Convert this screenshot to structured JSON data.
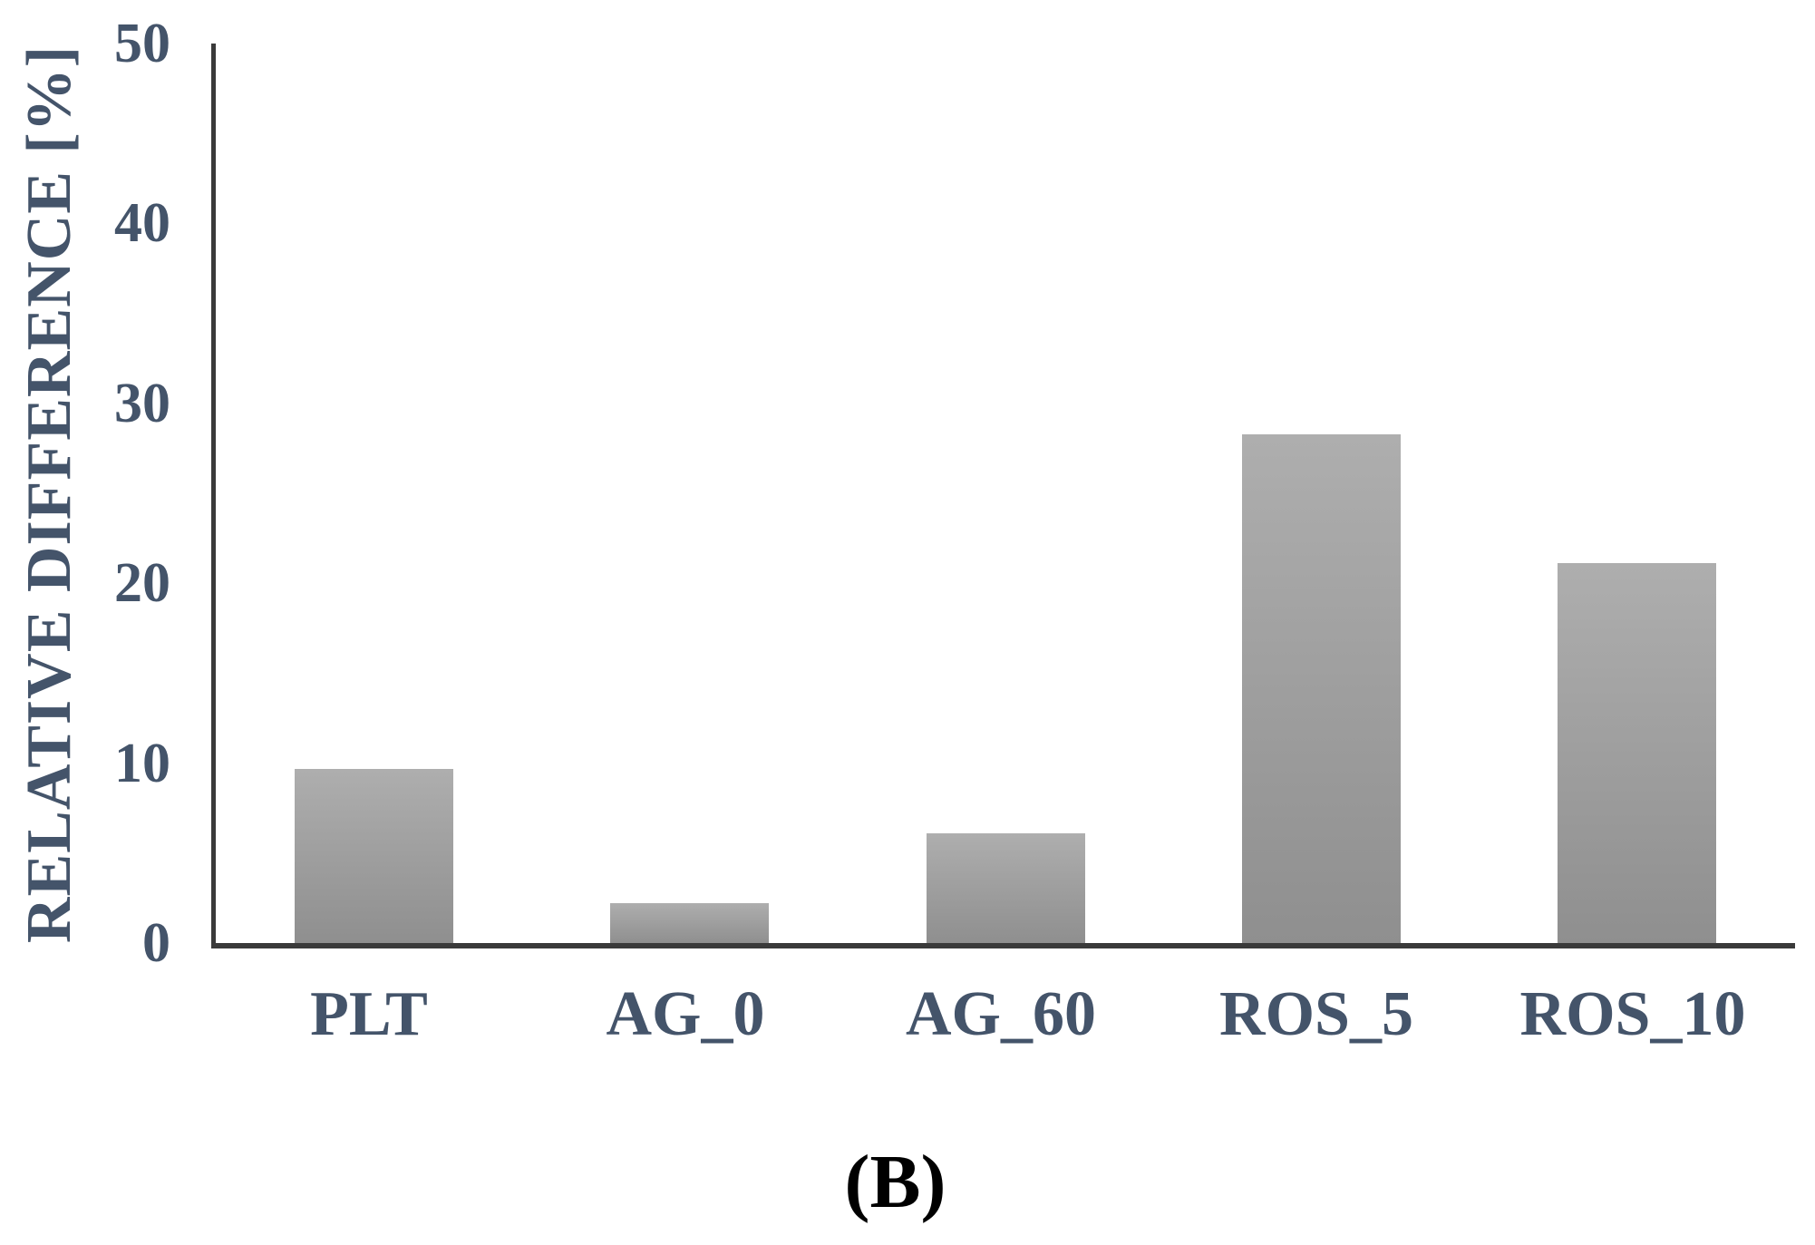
{
  "figure": {
    "caption": "(B)"
  },
  "colors": {
    "text": "#44546A",
    "caption": "#000000",
    "axis": "#3a3a3a",
    "bar_top": "#aeaeae",
    "bar_bottom": "#8f8f8f",
    "background": "#ffffff"
  },
  "chart_data": {
    "type": "bar",
    "title": "",
    "xlabel": "",
    "ylabel": "RELATIVE DIFFERENCE [%]",
    "categories": [
      "PLT",
      "AG_0",
      "AG_60",
      "ROS_5",
      "ROS_10"
    ],
    "values": [
      9.7,
      2.2,
      6.1,
      28.3,
      21.1
    ],
    "ylim": [
      0,
      50
    ],
    "yticks": [
      0,
      10,
      20,
      30,
      40,
      50
    ],
    "grid": false,
    "legend": false,
    "bar_width_fraction": 0.502,
    "bar_style": "gray vertical gradient, no border"
  }
}
